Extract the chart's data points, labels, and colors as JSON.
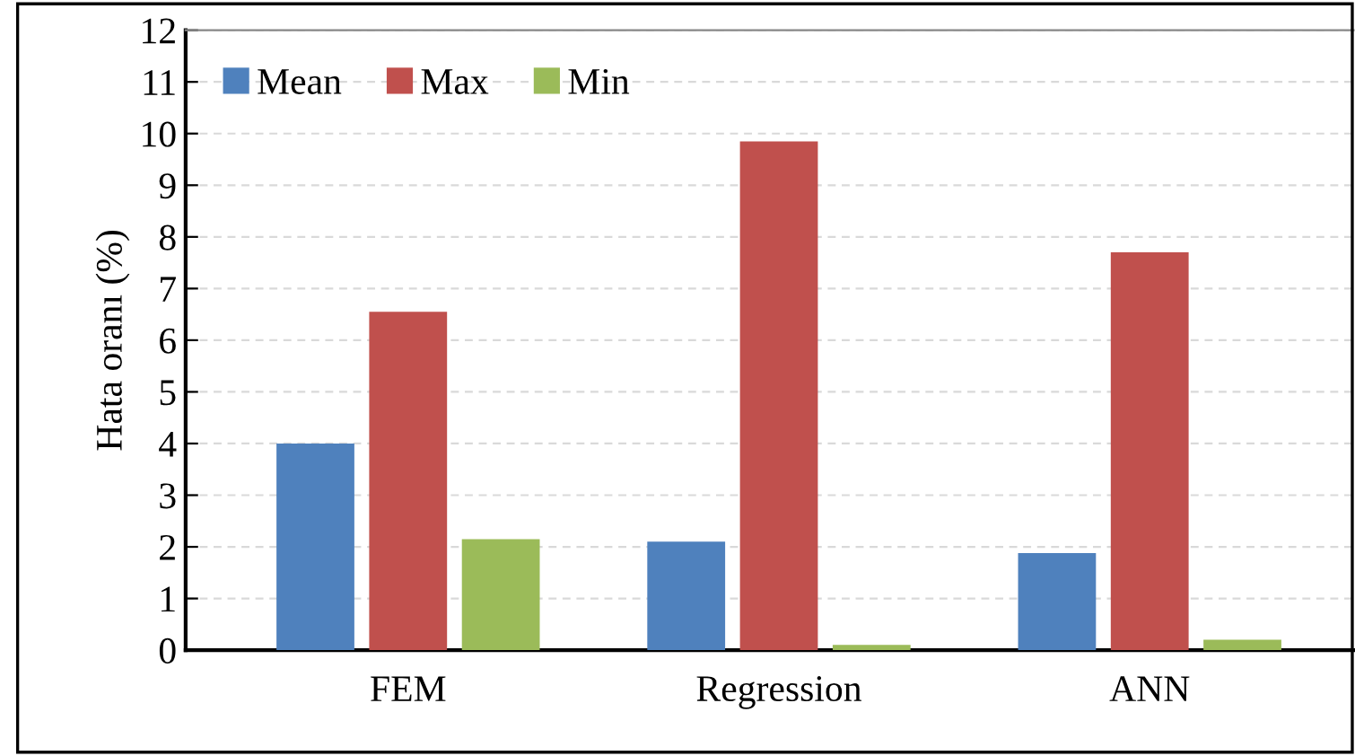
{
  "chart_data": {
    "type": "bar",
    "ylabel": "Hata oranı (%)",
    "categories": [
      "FEM",
      "Regression",
      "ANN"
    ],
    "series": [
      {
        "name": "Mean",
        "color": "#4f81bd",
        "values": [
          4.0,
          2.1,
          1.88
        ]
      },
      {
        "name": "Max",
        "color": "#c0504d",
        "values": [
          6.55,
          9.85,
          7.7
        ]
      },
      {
        "name": "Min",
        "color": "#9bbb59",
        "values": [
          2.15,
          0.1,
          0.2
        ]
      }
    ],
    "ylim": [
      0,
      12
    ],
    "yticks": [
      0,
      1,
      2,
      3,
      4,
      5,
      6,
      7,
      8,
      9,
      10,
      11,
      12
    ],
    "grid": "y",
    "legend": "top left"
  }
}
